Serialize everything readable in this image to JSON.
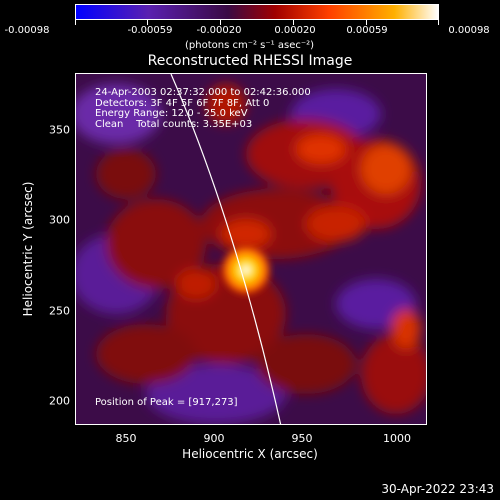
{
  "colorbar": {
    "ticks": [
      "-0.00098",
      "-0.00059",
      "-0.00020",
      "0.00020",
      "0.00059",
      "0.00098"
    ],
    "units": "(photons cm⁻² s⁻¹ asec⁻²)",
    "colors": [
      "#0000ff",
      "#6020a0",
      "#3a0a44",
      "#c01010",
      "#ff5a00",
      "#ffb000",
      "#ffffff"
    ]
  },
  "title": "Reconstructed RHESSI Image",
  "info": {
    "line1": "24-Apr-2003 02:37:32.000 to 02:42:36.000",
    "line2": "Detectors: 3F 4F 5F 6F 7F 8F, Att 0",
    "line3": "Energy Range: 12.0 - 25.0 keV",
    "line4": "Clean    Total counts: 3.35E+03"
  },
  "peak": "Position of Peak = [917,273]",
  "axes": {
    "xlabel": "Heliocentric X (arcsec)",
    "ylabel": "Heliocentric Y (arcsec)",
    "xticks": [
      "850",
      "900",
      "950",
      "1000"
    ],
    "yticks": [
      "350",
      "300",
      "250",
      "200"
    ]
  },
  "timestamp": "30-Apr-2022 23:43"
}
